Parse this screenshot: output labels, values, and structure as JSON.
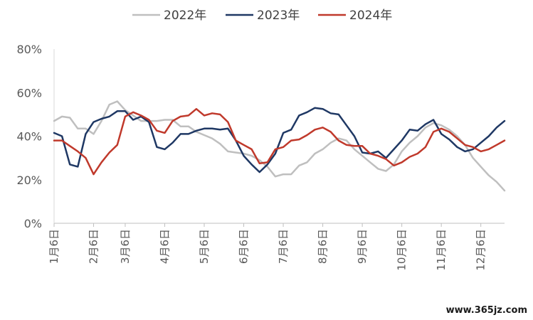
{
  "chart_data": {
    "type": "line",
    "ylim": [
      0,
      80
    ],
    "yticks": [
      "0%",
      "20%",
      "40%",
      "60%",
      "80%"
    ],
    "ytick_values": [
      0,
      20,
      40,
      60,
      80
    ],
    "x_tick_labels": [
      "1月6日",
      "2月6日",
      "3月6日",
      "4月6日",
      "5月6日",
      "6月6日",
      "7月6日",
      "8月6日",
      "9月6日",
      "10月6日",
      "11月6日",
      "12月6日"
    ],
    "x_tick_weeks": [
      0,
      5,
      9,
      14,
      19,
      24,
      29,
      34,
      39,
      44,
      49,
      54
    ],
    "weeks": 58,
    "legend_position": "top-center",
    "grid": false,
    "series": [
      {
        "name": "2022年",
        "color": "#BFBFBF",
        "values": [
          47,
          49,
          48.5,
          43.5,
          43.5,
          41,
          47,
          54.5,
          56,
          52,
          49.5,
          47,
          47,
          47,
          47.5,
          47.5,
          44.5,
          44.5,
          42,
          40.5,
          39,
          36.5,
          33,
          32.5,
          32,
          31,
          29,
          26,
          21.5,
          22.5,
          22.5,
          26.5,
          28,
          32,
          34,
          37,
          39,
          38,
          34,
          31,
          28,
          25,
          24,
          27,
          33,
          37,
          40,
          44,
          46,
          45,
          43,
          40,
          36,
          30,
          26,
          22,
          19,
          15
        ]
      },
      {
        "name": "2023年",
        "color": "#1F3864",
        "values": [
          41.5,
          40,
          27,
          26,
          41,
          46.5,
          48,
          49,
          51.5,
          51.5,
          47.5,
          49,
          46.5,
          35,
          34,
          37,
          41,
          41,
          42.5,
          43.5,
          43.5,
          43,
          43.5,
          38,
          31,
          27,
          23.5,
          27,
          32,
          41.5,
          43,
          49.5,
          51,
          53,
          52.5,
          50.5,
          50,
          45,
          40,
          32.5,
          32,
          33,
          30,
          34,
          38,
          43,
          42.5,
          45.5,
          47.5,
          41,
          38.5,
          35,
          33,
          34,
          37,
          40,
          44,
          47
        ]
      },
      {
        "name": "2024年",
        "color": "#C0392B",
        "values": [
          38,
          38,
          35.5,
          33,
          30,
          22.5,
          28,
          32.5,
          36,
          49,
          51,
          49.5,
          47.5,
          42.5,
          41.5,
          47,
          49,
          49.5,
          52.5,
          49.5,
          50.5,
          50,
          46.5,
          38,
          36,
          34,
          27.5,
          28,
          34,
          35,
          38,
          38.5,
          40.5,
          43,
          44,
          42,
          38,
          36,
          35.5,
          35.5,
          32,
          31,
          29.5,
          26.5,
          28,
          30.5,
          32,
          35,
          42,
          43.5,
          42,
          39,
          36,
          35,
          33,
          34,
          36,
          38
        ]
      }
    ]
  },
  "watermark": "www.365jz.com"
}
